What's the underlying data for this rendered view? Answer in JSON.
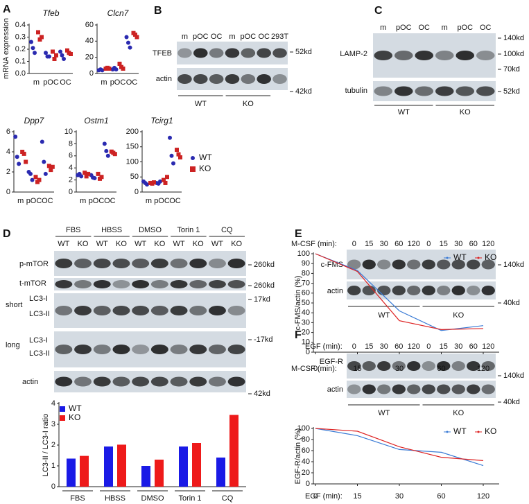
{
  "letters": [
    "A",
    "B",
    "C",
    "D",
    "E",
    "F"
  ],
  "blots": [
    {
      "lanes": [
        "m",
        "pOC",
        "OC",
        "m",
        "pOC",
        "OC",
        "293T"
      ],
      "rows": [
        "TFEB",
        "actin"
      ],
      "markers": [
        "52kd",
        "42kd"
      ],
      "groups": [
        "WT",
        "KO"
      ]
    },
    {
      "lanes": [
        "m",
        "pOC",
        "OC",
        "m",
        "pOC",
        "OC"
      ],
      "rows": [
        "LAMP-2",
        "tubulin"
      ],
      "markers": [
        "140kd",
        "100kd",
        "70kd",
        "52kd"
      ],
      "groups": [
        "WT",
        "KO"
      ]
    },
    {
      "lanes": [
        "WT",
        "KO",
        "WT",
        "KO",
        "WT",
        "KO",
        "WT",
        "KO",
        "WT",
        "KO"
      ],
      "rows": [
        "p-mTOR",
        "t-mTOR",
        "short",
        "LC3-I",
        "LC3-II",
        "long",
        "LC3-I",
        "LC3-II",
        "actin"
      ],
      "markers": [
        "260kd",
        "260kd",
        "17kd",
        "-17kd",
        "42kd"
      ],
      "groups": [
        "FBS",
        "HBSS",
        "DMSO",
        "Torin 1",
        "CQ"
      ]
    },
    {
      "treatment": "M-CSF (min):",
      "lanes": [
        "0",
        "15",
        "30",
        "60",
        "120",
        "0",
        "15",
        "30",
        "60",
        "120"
      ],
      "rows": [
        "c-FMS",
        "actin"
      ],
      "markers": [
        "140kd",
        "40kd"
      ],
      "groups": [
        "WT",
        "KO"
      ]
    },
    {
      "treatment": "EGF (min):",
      "lanes": [
        "0",
        "15",
        "30",
        "60",
        "120",
        "0",
        "15",
        "30",
        "60",
        "120"
      ],
      "rows": [
        "EGF-R",
        "actin"
      ],
      "markers": [
        "140kd",
        "40kd"
      ],
      "groups": [
        "WT",
        "KO"
      ]
    }
  ],
  "chart_data": [
    {
      "type": "dot",
      "title": "Tfeb",
      "ylabel": "mRNA expression",
      "categories": [
        "m",
        "pOC",
        "OC"
      ],
      "ylim": [
        0,
        0.4
      ],
      "yticks": [
        {
          "value": 0,
          "label": "0.0"
        },
        0.1,
        0.2,
        0.3,
        0.4
      ],
      "series": [
        {
          "color": "#2a2ab0",
          "values": [
            [
              0.26,
              0.21,
              0.17
            ],
            [
              0.17,
              0.14,
              0.14
            ],
            [
              0.18,
              0.15,
              0.12
            ]
          ]
        },
        {
          "color": "#cc2222",
          "values": [
            [
              0.34,
              0.28,
              0.3
            ],
            [
              0.18,
              0.12,
              0.15
            ],
            [
              0.19,
              0.17,
              0.16
            ]
          ]
        }
      ]
    },
    {
      "type": "dot",
      "title": "Clcn7",
      "categories": [
        "m",
        "pOC",
        "OC"
      ],
      "ylim": [
        0,
        60
      ],
      "yticks": [
        0,
        20,
        40,
        60
      ],
      "series": [
        {
          "color": "#2a2ab0",
          "values": [
            [
              4,
              5,
              4
            ],
            [
              5,
              7,
              5
            ],
            [
              45,
              38,
              32
            ]
          ]
        },
        {
          "color": "#cc2222",
          "values": [
            [
              6,
              7,
              6
            ],
            [
              12,
              8,
              6
            ],
            [
              50,
              48,
              45
            ]
          ]
        }
      ]
    },
    {
      "type": "dot",
      "title": "Dpp7",
      "categories": [
        "m",
        "pOC",
        "OC"
      ],
      "ylim": [
        0,
        6
      ],
      "yticks": [
        0,
        2,
        4,
        6
      ],
      "series": [
        {
          "color": "#2a2ab0",
          "values": [
            [
              5.5,
              3.5,
              2.8
            ],
            [
              2.0,
              1.8,
              1.2
            ],
            [
              5.0,
              3.0,
              1.8
            ]
          ]
        },
        {
          "color": "#cc2222",
          "values": [
            [
              4.0,
              3.8,
              3.0
            ],
            [
              1.5,
              1.0,
              1.2
            ],
            [
              2.6,
              2.2,
              2.5
            ]
          ]
        }
      ]
    },
    {
      "type": "dot",
      "title": "Ostm1",
      "categories": [
        "m",
        "pOC",
        "OC"
      ],
      "ylim": [
        0,
        10
      ],
      "yticks": [
        0,
        2,
        4,
        6,
        8,
        10
      ],
      "series": [
        {
          "color": "#2a2ab0",
          "values": [
            [
              2.8,
              3.0,
              2.6
            ],
            [
              2.8,
              2.4,
              2.3
            ],
            [
              8.0,
              6.8,
              6.0
            ]
          ]
        },
        {
          "color": "#cc2222",
          "values": [
            [
              3.2,
              2.6,
              3.0
            ],
            [
              3.0,
              2.2,
              2.5
            ],
            [
              6.7,
              6.5,
              6.3
            ]
          ]
        }
      ]
    },
    {
      "type": "dot",
      "title": "Tcirg1",
      "categories": [
        "m",
        "pOC",
        "OC"
      ],
      "ylim": [
        0,
        200
      ],
      "yticks": [
        0,
        50,
        100,
        150,
        200
      ],
      "series": [
        {
          "name": "WT",
          "color": "#2a2ab0",
          "values": [
            [
              35,
              30,
              25
            ],
            [
              30,
              28,
              35
            ],
            [
              180,
              120,
              95
            ]
          ]
        },
        {
          "name": "KO",
          "color": "#cc2222",
          "values": [
            [
              30,
              28,
              32
            ],
            [
              40,
              30,
              50
            ],
            [
              140,
              125,
              115
            ]
          ]
        }
      ]
    },
    {
      "type": "bar",
      "ylabel": "LC3-II / LC3-I ratio",
      "categories": [
        "FBS",
        "HBSS",
        "DMSO",
        "Torin 1",
        "CQ"
      ],
      "ylim": [
        0,
        4
      ],
      "yticks": [
        0,
        1,
        2,
        3,
        4
      ],
      "series": [
        {
          "name": "WT",
          "color": "#1a1ae6",
          "values": [
            1.35,
            1.93,
            1.0,
            1.93,
            1.4
          ]
        },
        {
          "name": "KO",
          "color": "#ee1a1a",
          "values": [
            1.48,
            2.02,
            1.3,
            2.1,
            3.45
          ]
        }
      ]
    },
    {
      "type": "line",
      "ylabel": "c-FMS/actin (%)",
      "xlabel": "M-CSF (min):",
      "categories": [
        "0",
        "15",
        "30",
        "60",
        "120"
      ],
      "ylim": [
        0,
        100
      ],
      "yticks": [
        0,
        10,
        20,
        30,
        40,
        50,
        60,
        70,
        80,
        90,
        100
      ],
      "series": [
        {
          "name": "WT",
          "color": "#3a7bd5",
          "values": [
            100,
            83,
            42,
            22,
            27
          ]
        },
        {
          "name": "KO",
          "color": "#dd2222",
          "values": [
            100,
            82,
            32,
            23,
            24
          ]
        }
      ]
    },
    {
      "type": "line",
      "ylabel": "EGF-R/actin (%)",
      "xlabel": "EGF (min):",
      "categories": [
        "0",
        "15",
        "30",
        "60",
        "120"
      ],
      "ylim": [
        0,
        100
      ],
      "yticks": [
        0,
        20,
        40,
        60,
        80,
        100
      ],
      "series": [
        {
          "name": "WT",
          "color": "#3a7bd5",
          "values": [
            100,
            87,
            62,
            57,
            33
          ]
        },
        {
          "name": "KO",
          "color": "#dd2222",
          "values": [
            100,
            95,
            67,
            48,
            42
          ]
        }
      ]
    }
  ]
}
